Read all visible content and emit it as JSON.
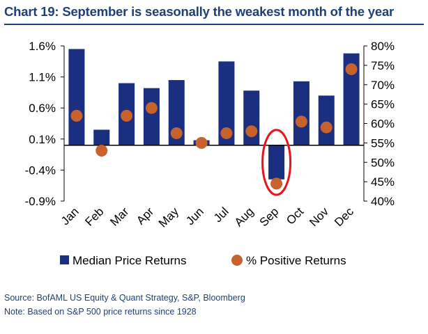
{
  "title": "Chart 19: September is seasonally the weakest month of the year",
  "source_note": "Source: BofAML US Equity & Quant Strategy, S&P, Bloomberg",
  "base_note": "Note: Based on S&P 500 price returns since 1928",
  "colors": {
    "bar": "#1a2f80",
    "dot": "#c8622c",
    "highlight": "#e8141b",
    "title": "#1f3f7a"
  },
  "chart_data": {
    "type": "bar",
    "categories": [
      "Jan",
      "Feb",
      "Mar",
      "Apr",
      "May",
      "Jun",
      "Jul",
      "Aug",
      "Sep",
      "Oct",
      "Nov",
      "Dec"
    ],
    "series": [
      {
        "name": "Median Price Returns",
        "type": "bar",
        "axis": "left",
        "values": [
          1.55,
          0.25,
          1.0,
          0.92,
          1.05,
          0.08,
          1.35,
          0.88,
          -0.55,
          1.03,
          0.8,
          1.48
        ]
      },
      {
        "name": "% Positive Returns",
        "type": "scatter",
        "axis": "right",
        "values": [
          62,
          53,
          62,
          64,
          57.5,
          55,
          57.5,
          58,
          44.5,
          60.5,
          59,
          74
        ]
      }
    ],
    "y_left": {
      "ticks": [
        "1.6%",
        "1.1%",
        "0.6%",
        "0.1%",
        "-0.4%",
        "-0.9%"
      ],
      "min": -0.9,
      "max": 1.6
    },
    "y_right": {
      "ticks": [
        "80%",
        "75%",
        "70%",
        "65%",
        "60%",
        "55%",
        "50%",
        "45%",
        "40%"
      ],
      "min": 40,
      "max": 80
    },
    "highlight": "Sep",
    "legend": "bottom"
  }
}
